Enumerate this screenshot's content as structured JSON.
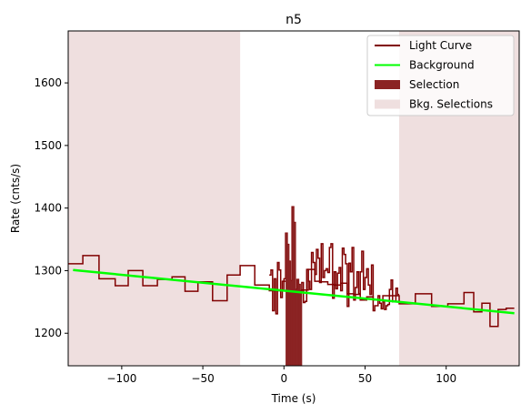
{
  "chart_data": {
    "type": "line",
    "title": "n5",
    "xlabel": "Time (s)",
    "ylabel": "Rate (cnts/s)",
    "xlim": [
      -133,
      145
    ],
    "ylim": [
      1148,
      1683
    ],
    "xticks": [
      -100,
      -50,
      0,
      50,
      100
    ],
    "xtick_labels": [
      "−100",
      "−50",
      "0",
      "50",
      "100"
    ],
    "yticks": [
      1200,
      1300,
      1400,
      1500,
      1600
    ],
    "ytick_labels": [
      "1200",
      "1300",
      "1400",
      "1500",
      "1600"
    ],
    "grid": false,
    "legend_position": "top-right",
    "legend": [
      {
        "label": "Light Curve",
        "kind": "line",
        "color": "#800000"
      },
      {
        "label": "Background",
        "kind": "line",
        "color": "#00ff00"
      },
      {
        "label": "Selection",
        "kind": "patch",
        "color": "#8b2323"
      },
      {
        "label": "Bkg. Selections",
        "kind": "patch",
        "color": "#efdfdf"
      }
    ],
    "bkg_selections": [
      [
        -133,
        -27
      ],
      [
        71,
        145
      ]
    ],
    "selection": [
      1,
      11
    ],
    "background": {
      "x": [
        -130,
        142
      ],
      "y": [
        1301,
        1232
      ],
      "color": "#00ff00"
    },
    "light_curve": {
      "color": "#800000",
      "step_edges": [
        -133,
        -124,
        -114,
        -104,
        -96,
        -87,
        -78,
        -69,
        -61,
        -53,
        -44,
        -35,
        -27,
        -18,
        -9,
        -1,
        3,
        7,
        11,
        15,
        19,
        23,
        27,
        31,
        35,
        39,
        43,
        47,
        51,
        55,
        61,
        71,
        81,
        91,
        101,
        111,
        117,
        122,
        127,
        132,
        137,
        142
      ],
      "step_values": [
        1311,
        1324,
        1287,
        1276,
        1300,
        1276,
        1286,
        1290,
        1267,
        1282,
        1252,
        1293,
        1308,
        1277,
        1268,
        1283,
        1270,
        1267,
        1269,
        1302,
        1283,
        1282,
        1278,
        1277,
        1280,
        1263,
        1262,
        1253,
        1258,
        1253,
        1260,
        1247,
        1263,
        1243,
        1247,
        1265,
        1234,
        1248,
        1211,
        1238,
        1240
      ],
      "bursty_x": [
        -9,
        -8,
        -7,
        -6,
        -5,
        -4,
        -3,
        -2,
        -1,
        0,
        1,
        2,
        3,
        4,
        5,
        6,
        7,
        8,
        9,
        10,
        11,
        12,
        13,
        14,
        15,
        16,
        17,
        18,
        19,
        20,
        21,
        22,
        23,
        24,
        25,
        26,
        27,
        28,
        29,
        30,
        31,
        32,
        33,
        34,
        35,
        36,
        37,
        38,
        39,
        40,
        41,
        42,
        43,
        44,
        45,
        46,
        47,
        48,
        49,
        50,
        51,
        52,
        53,
        54,
        55,
        56,
        57,
        58,
        59,
        60,
        61,
        62,
        63,
        64,
        65,
        66,
        67,
        68,
        69,
        70
      ],
      "bursty_y": [
        1293,
        1301,
        1236,
        1287,
        1231,
        1313,
        1301,
        1257,
        1268,
        1287,
        1360,
        1342,
        1315,
        1284,
        1402,
        1377,
        1270,
        1286,
        1278,
        1268,
        1281,
        1249,
        1251,
        1302,
        1283,
        1270,
        1329,
        1313,
        1294,
        1334,
        1320,
        1281,
        1343,
        1289,
        1300,
        1303,
        1297,
        1337,
        1343,
        1256,
        1298,
        1271,
        1296,
        1305,
        1268,
        1336,
        1326,
        1311,
        1243,
        1312,
        1298,
        1337,
        1253,
        1273,
        1298,
        1263,
        1298,
        1331,
        1270,
        1289,
        1303,
        1277,
        1262,
        1309,
        1236,
        1244,
        1244,
        1260,
        1248,
        1239,
        1250,
        1238,
        1244,
        1246,
        1270,
        1285,
        1250,
        1250,
        1272,
        1262
      ]
    }
  }
}
